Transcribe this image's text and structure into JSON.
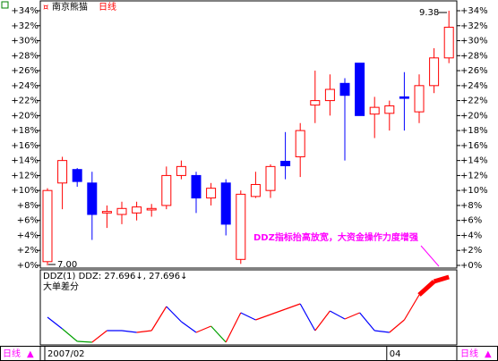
{
  "chart_data": {
    "type": "candlestick",
    "title": "南京熊猫",
    "subtitle": "日线",
    "up_color": "#ff0000",
    "down_color": "#0000ff",
    "ylim": [
      0,
      34
    ],
    "yticks": [
      {
        "value": 0,
        "label": "+0%"
      },
      {
        "value": 2,
        "label": "+2%"
      },
      {
        "value": 4,
        "label": "+4%"
      },
      {
        "value": 6,
        "label": "+6%"
      },
      {
        "value": 8,
        "label": "+8%"
      },
      {
        "value": 10,
        "label": "+10%"
      },
      {
        "value": 12,
        "label": "+12%"
      },
      {
        "value": 14,
        "label": "+14%"
      },
      {
        "value": 16,
        "label": "+16%"
      },
      {
        "value": 18,
        "label": "+18%"
      },
      {
        "value": 20,
        "label": "+20%"
      },
      {
        "value": 22,
        "label": "+22%"
      },
      {
        "value": 24,
        "label": "+24%"
      },
      {
        "value": 26,
        "label": "+26%"
      },
      {
        "value": 28,
        "label": "+28%"
      },
      {
        "value": 30,
        "label": "+30%"
      },
      {
        "value": 32,
        "label": "+32%"
      },
      {
        "value": 34,
        "label": "+34%"
      }
    ],
    "open": [
      0.5,
      11,
      12.8,
      11,
      7,
      6.8,
      7,
      7.4,
      8,
      12,
      12,
      9,
      11,
      0.8,
      9.2,
      10,
      13.9,
      14.5,
      21.4,
      22,
      24.3,
      27,
      20.2,
      20.3,
      22.5,
      20.5,
      24,
      27.7
    ],
    "high": [
      10.3,
      14.5,
      13,
      12.5,
      8,
      8.5,
      8.5,
      8.2,
      13.2,
      14,
      12.5,
      11,
      11.5,
      10,
      12.5,
      13.5,
      17.8,
      19,
      26,
      25.5,
      25,
      27,
      22.5,
      22,
      25.8,
      25.5,
      29,
      34
    ],
    "low": [
      0,
      7.5,
      10.5,
      3.4,
      5,
      5.5,
      6,
      6.5,
      7.5,
      11.5,
      7,
      8,
      4,
      0.2,
      9,
      9,
      11.5,
      11.8,
      19,
      20,
      14,
      20,
      17,
      18,
      18,
      19,
      23,
      27
    ],
    "close": [
      10,
      14,
      11.2,
      6.8,
      7.2,
      7.6,
      7.8,
      7.6,
      12,
      13.2,
      9,
      10.3,
      5.5,
      9.5,
      10.8,
      13.2,
      13.3,
      18,
      22,
      23.5,
      22.7,
      20,
      21.1,
      21.3,
      22.3,
      24,
      27.7,
      31.8
    ],
    "x_labels": [
      {
        "index": 0,
        "label": "2007/02"
      },
      {
        "index": 23,
        "label": "04"
      }
    ],
    "high_label": "9.38",
    "low_label": "7.00",
    "annotation": "DDZ指标抬高放宽，大资金操作力度增强",
    "indicator_title": "DDZ(1) DDZ: 27.696↓, 27.696↓",
    "indicator_subtitle": "大单差分",
    "ddz_ylim": [
      -40,
      43
    ],
    "ddz": [
      -10,
      -23,
      -37,
      -38,
      -25,
      -25,
      -27,
      -25,
      2,
      -15,
      -27,
      -20,
      -38,
      -5,
      -13,
      -7,
      -1,
      5,
      -25,
      -3,
      -12,
      -5,
      -25,
      -27,
      -13,
      15,
      30,
      35
    ],
    "period_label": "日线"
  }
}
